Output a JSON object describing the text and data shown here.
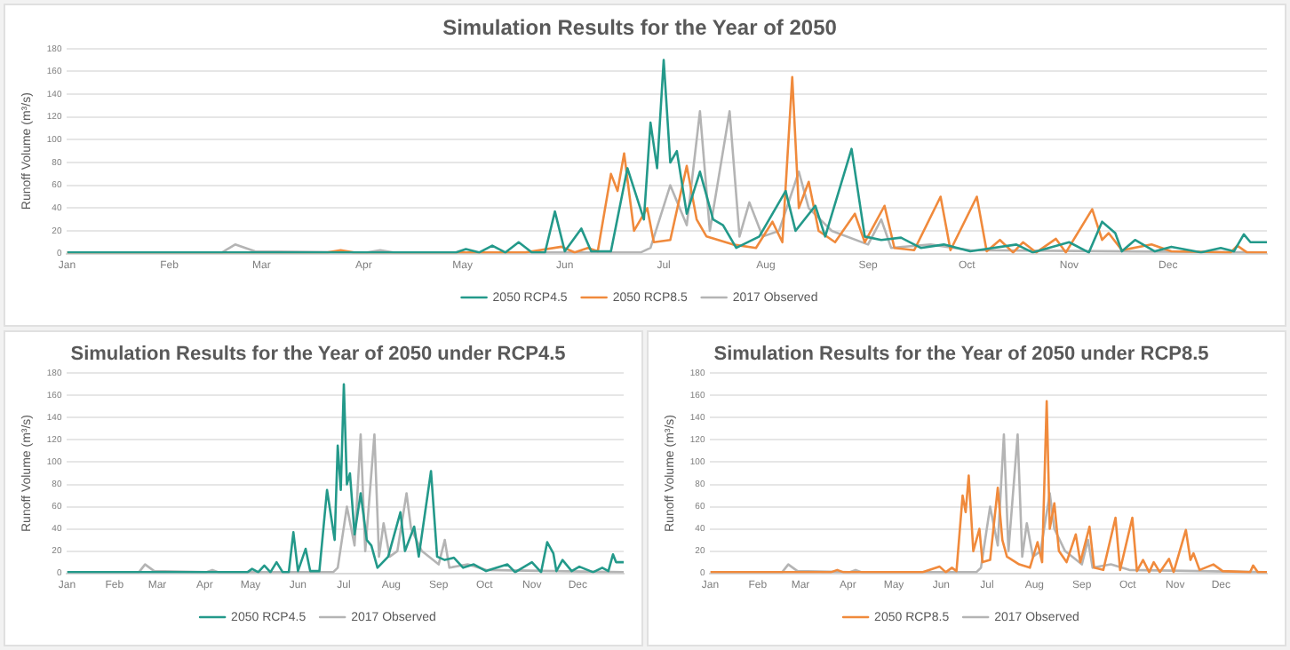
{
  "chart_data": [
    {
      "type": "line",
      "title": "Simulation Results for the Year of 2050",
      "ylabel": "Runoff Volume (m³/s)",
      "xlim": [
        "--01-01",
        "--12-31"
      ],
      "xticks": [
        {
          "value": "--01-01",
          "label": "Jan"
        },
        {
          "value": "--02-01",
          "label": "Feb"
        },
        {
          "value": "--03-01",
          "label": "Mar"
        },
        {
          "value": "--04-01",
          "label": "Apr"
        },
        {
          "value": "--05-01",
          "label": "May"
        },
        {
          "value": "--06-01",
          "label": "Jun"
        },
        {
          "value": "--07-01",
          "label": "Jul"
        },
        {
          "value": "--08-01",
          "label": "Aug"
        },
        {
          "value": "--09-01",
          "label": "Sep"
        },
        {
          "value": "--10-01",
          "label": "Oct"
        },
        {
          "value": "--11-01",
          "label": "Nov"
        },
        {
          "value": "--12-01",
          "label": "Dec"
        }
      ],
      "ylim": [
        0,
        180
      ],
      "yticks": [
        0,
        20,
        40,
        60,
        80,
        100,
        120,
        140,
        160,
        180
      ],
      "grid": "y",
      "legend": "bottom",
      "series": [
        {
          "name": "2050 RCP4.5",
          "color": "#23998a",
          "x": [
            "--01-01",
            "--03-01",
            "--04-29",
            "--05-02",
            "--05-06",
            "--05-10",
            "--05-14",
            "--05-18",
            "--05-22",
            "--05-26",
            "--05-29",
            "--06-01",
            "--06-06",
            "--06-09",
            "--06-15",
            "--06-20",
            "--06-25",
            "--06-27",
            "--06-29",
            "--07-01",
            "--07-03",
            "--07-05",
            "--07-08",
            "--07-12",
            "--07-16",
            "--07-19",
            "--07-23",
            "--07-30",
            "--08-07",
            "--08-10",
            "--08-16",
            "--08-19",
            "--08-27",
            "--08-31",
            "--09-05",
            "--09-11",
            "--09-17",
            "--09-24",
            "--10-02",
            "--10-16",
            "--10-21",
            "--11-01",
            "--11-07",
            "--11-11",
            "--11-15",
            "--11-17",
            "--11-21",
            "--11-27",
            "--12-02",
            "--12-11",
            "--12-17",
            "--12-21",
            "--12-24",
            "--12-26",
            "--12-31"
          ],
          "values": [
            1,
            1,
            1,
            4,
            1,
            7,
            1,
            10,
            1,
            1,
            37,
            2,
            22,
            2,
            2,
            75,
            30,
            115,
            75,
            170,
            80,
            90,
            35,
            72,
            30,
            25,
            5,
            15,
            55,
            20,
            42,
            15,
            92,
            15,
            12,
            14,
            5,
            8,
            2,
            8,
            1,
            10,
            1,
            28,
            18,
            2,
            12,
            2,
            6,
            1,
            5,
            2,
            17,
            10,
            10
          ]
        },
        {
          "name": "2050 RCP8.5",
          "color": "#f08a3c",
          "x": [
            "--01-01",
            "--03-21",
            "--03-25",
            "--03-29",
            "--05-20",
            "--05-31",
            "--06-04",
            "--06-08",
            "--06-11",
            "--06-15",
            "--06-17",
            "--06-19",
            "--06-22",
            "--06-26",
            "--06-28",
            "--07-03",
            "--07-08",
            "--07-11",
            "--07-14",
            "--07-22",
            "--07-29",
            "--08-03",
            "--08-06",
            "--08-09",
            "--08-11",
            "--08-14",
            "--08-17",
            "--08-22",
            "--08-28",
            "--08-31",
            "--09-06",
            "--09-09",
            "--09-15",
            "--09-23",
            "--09-26",
            "--10-04",
            "--10-07",
            "--10-11",
            "--10-15",
            "--10-18",
            "--10-22",
            "--10-28",
            "--10-31",
            "--11-08",
            "--11-11",
            "--11-13",
            "--11-17",
            "--11-26",
            "--12-02",
            "--12-20",
            "--12-22",
            "--12-25",
            "--12-31"
          ],
          "values": [
            1,
            1,
            3,
            1,
            1,
            6,
            1,
            5,
            2,
            70,
            55,
            88,
            20,
            40,
            10,
            12,
            77,
            30,
            15,
            8,
            5,
            28,
            10,
            155,
            40,
            63,
            20,
            10,
            35,
            10,
            42,
            5,
            3,
            50,
            3,
            50,
            2,
            12,
            1,
            10,
            1,
            13,
            1,
            39,
            12,
            18,
            3,
            8,
            2,
            1,
            7,
            1,
            1
          ]
        },
        {
          "name": "2017 Observed",
          "color": "#b4b4b4",
          "x": [
            "--01-01",
            "--02-17",
            "--02-21",
            "--02-27",
            "--04-02",
            "--04-06",
            "--04-10",
            "--06-24",
            "--06-27",
            "--07-03",
            "--07-08",
            "--07-12",
            "--07-15",
            "--07-21",
            "--07-24",
            "--07-27",
            "--07-31",
            "--08-05",
            "--08-11",
            "--08-14",
            "--08-21",
            "--09-01",
            "--09-05",
            "--09-08",
            "--09-20",
            "--10-02",
            "--12-31"
          ],
          "values": [
            1,
            1,
            8,
            2,
            1,
            3,
            1,
            1,
            5,
            60,
            25,
            125,
            20,
            125,
            15,
            45,
            15,
            20,
            72,
            40,
            20,
            8,
            30,
            5,
            8,
            3,
            1
          ]
        }
      ]
    },
    {
      "type": "line",
      "title": "Simulation Results for the Year of 2050 under RCP4.5",
      "ylabel": "Runoff Volume (m³/s)",
      "xlim": [
        "--01-01",
        "--12-31"
      ],
      "xticks": [
        {
          "value": "--01-01",
          "label": "Jan"
        },
        {
          "value": "--02-01",
          "label": "Feb"
        },
        {
          "value": "--03-01",
          "label": "Mar"
        },
        {
          "value": "--04-01",
          "label": "Apr"
        },
        {
          "value": "--05-01",
          "label": "May"
        },
        {
          "value": "--06-01",
          "label": "Jun"
        },
        {
          "value": "--07-01",
          "label": "Jul"
        },
        {
          "value": "--08-01",
          "label": "Aug"
        },
        {
          "value": "--09-01",
          "label": "Sep"
        },
        {
          "value": "--10-01",
          "label": "Oct"
        },
        {
          "value": "--11-01",
          "label": "Nov"
        },
        {
          "value": "--12-01",
          "label": "Dec"
        }
      ],
      "ylim": [
        0,
        180
      ],
      "yticks": [
        0,
        20,
        40,
        60,
        80,
        100,
        120,
        140,
        160,
        180
      ],
      "grid": "y",
      "legend": "bottom",
      "series": [
        {
          "name": "2050 RCP4.5",
          "color": "#23998a",
          "x": [
            "--01-01",
            "--03-01",
            "--04-29",
            "--05-02",
            "--05-06",
            "--05-10",
            "--05-14",
            "--05-18",
            "--05-22",
            "--05-26",
            "--05-29",
            "--06-01",
            "--06-06",
            "--06-09",
            "--06-15",
            "--06-20",
            "--06-25",
            "--06-27",
            "--06-29",
            "--07-01",
            "--07-03",
            "--07-05",
            "--07-08",
            "--07-12",
            "--07-16",
            "--07-19",
            "--07-23",
            "--07-30",
            "--08-07",
            "--08-10",
            "--08-16",
            "--08-19",
            "--08-27",
            "--08-31",
            "--09-05",
            "--09-11",
            "--09-17",
            "--09-24",
            "--10-02",
            "--10-16",
            "--10-21",
            "--11-01",
            "--11-07",
            "--11-11",
            "--11-15",
            "--11-17",
            "--11-21",
            "--11-27",
            "--12-02",
            "--12-11",
            "--12-17",
            "--12-21",
            "--12-24",
            "--12-26",
            "--12-31"
          ],
          "values": [
            1,
            1,
            1,
            4,
            1,
            7,
            1,
            10,
            1,
            1,
            37,
            2,
            22,
            2,
            2,
            75,
            30,
            115,
            75,
            170,
            80,
            90,
            35,
            72,
            30,
            25,
            5,
            15,
            55,
            20,
            42,
            15,
            92,
            15,
            12,
            14,
            5,
            8,
            2,
            8,
            1,
            10,
            1,
            28,
            18,
            2,
            12,
            2,
            6,
            1,
            5,
            2,
            17,
            10,
            10
          ]
        },
        {
          "name": "2017 Observed",
          "color": "#b4b4b4",
          "x": [
            "--01-01",
            "--02-17",
            "--02-21",
            "--02-27",
            "--04-02",
            "--04-06",
            "--04-10",
            "--06-24",
            "--06-27",
            "--07-03",
            "--07-08",
            "--07-12",
            "--07-15",
            "--07-21",
            "--07-24",
            "--07-27",
            "--07-31",
            "--08-05",
            "--08-11",
            "--08-14",
            "--08-21",
            "--09-01",
            "--09-05",
            "--09-08",
            "--09-20",
            "--10-02",
            "--12-31"
          ],
          "values": [
            1,
            1,
            8,
            2,
            1,
            3,
            1,
            1,
            5,
            60,
            25,
            125,
            20,
            125,
            15,
            45,
            15,
            20,
            72,
            40,
            20,
            8,
            30,
            5,
            8,
            3,
            1
          ]
        }
      ]
    },
    {
      "type": "line",
      "title": "Simulation Results for the Year of 2050 under RCP8.5",
      "ylabel": "Runoff Volume (m³/s)",
      "xlim": [
        "--01-01",
        "--12-31"
      ],
      "xticks": [
        {
          "value": "--01-01",
          "label": "Jan"
        },
        {
          "value": "--02-01",
          "label": "Feb"
        },
        {
          "value": "--03-01",
          "label": "Mar"
        },
        {
          "value": "--04-01",
          "label": "Apr"
        },
        {
          "value": "--05-01",
          "label": "May"
        },
        {
          "value": "--06-01",
          "label": "Jun"
        },
        {
          "value": "--07-01",
          "label": "Jul"
        },
        {
          "value": "--08-01",
          "label": "Aug"
        },
        {
          "value": "--09-01",
          "label": "Sep"
        },
        {
          "value": "--10-01",
          "label": "Oct"
        },
        {
          "value": "--11-01",
          "label": "Nov"
        },
        {
          "value": "--12-01",
          "label": "Dec"
        }
      ],
      "ylim": [
        0,
        180
      ],
      "yticks": [
        0,
        20,
        40,
        60,
        80,
        100,
        120,
        140,
        160,
        180
      ],
      "grid": "y",
      "legend": "bottom",
      "series": [
        {
          "name": "2050 RCP8.5",
          "color": "#f08a3c",
          "x": [
            "--01-01",
            "--03-21",
            "--03-25",
            "--03-29",
            "--05-20",
            "--05-31",
            "--06-04",
            "--06-08",
            "--06-11",
            "--06-15",
            "--06-17",
            "--06-19",
            "--06-22",
            "--06-26",
            "--06-28",
            "--07-03",
            "--07-08",
            "--07-11",
            "--07-14",
            "--07-22",
            "--07-29",
            "--08-03",
            "--08-06",
            "--08-09",
            "--08-11",
            "--08-14",
            "--08-17",
            "--08-22",
            "--08-28",
            "--08-31",
            "--09-06",
            "--09-09",
            "--09-15",
            "--09-23",
            "--09-26",
            "--10-04",
            "--10-07",
            "--10-11",
            "--10-15",
            "--10-18",
            "--10-22",
            "--10-28",
            "--10-31",
            "--11-08",
            "--11-11",
            "--11-13",
            "--11-17",
            "--11-26",
            "--12-02",
            "--12-20",
            "--12-22",
            "--12-25",
            "--12-31"
          ],
          "values": [
            1,
            1,
            3,
            1,
            1,
            6,
            1,
            5,
            2,
            70,
            55,
            88,
            20,
            40,
            10,
            12,
            77,
            30,
            15,
            8,
            5,
            28,
            10,
            155,
            40,
            63,
            20,
            10,
            35,
            10,
            42,
            5,
            3,
            50,
            3,
            50,
            2,
            12,
            1,
            10,
            1,
            13,
            1,
            39,
            12,
            18,
            3,
            8,
            2,
            1,
            7,
            1,
            1
          ]
        },
        {
          "name": "2017 Observed",
          "color": "#b4b4b4",
          "x": [
            "--01-01",
            "--02-17",
            "--02-21",
            "--02-27",
            "--04-02",
            "--04-06",
            "--04-10",
            "--06-24",
            "--06-27",
            "--07-03",
            "--07-08",
            "--07-12",
            "--07-15",
            "--07-21",
            "--07-24",
            "--07-27",
            "--07-31",
            "--08-05",
            "--08-11",
            "--08-14",
            "--08-21",
            "--09-01",
            "--09-05",
            "--09-08",
            "--09-20",
            "--10-02",
            "--12-31"
          ],
          "values": [
            1,
            1,
            8,
            2,
            1,
            3,
            1,
            1,
            5,
            60,
            25,
            125,
            20,
            125,
            15,
            45,
            15,
            20,
            72,
            40,
            20,
            8,
            30,
            5,
            8,
            3,
            1
          ]
        }
      ]
    }
  ]
}
